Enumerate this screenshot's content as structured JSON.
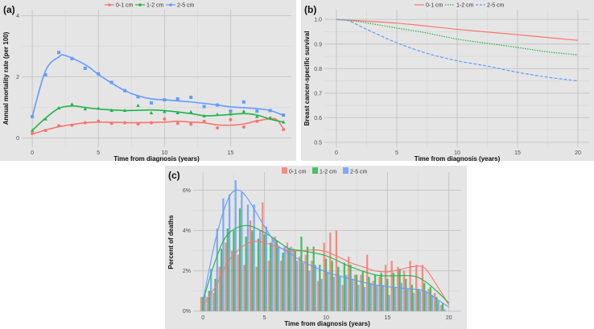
{
  "colors": {
    "c01": "#f8766d",
    "c12": "#1fb547",
    "c25": "#619cff",
    "bg": "#e5e5e5",
    "grid": "#c4c4c4",
    "minor": "#d6d6d6"
  },
  "chart_data": [
    {
      "id": "a",
      "panel_label": "(a)",
      "type": "scatter",
      "xlabel": "Time from diagnosis (years)",
      "ylabel": "Annual mortality rate (per 100)",
      "xlim": [
        -0.8,
        19.6
      ],
      "ylim": [
        -0.3,
        4.2
      ],
      "xticks": [
        0,
        5,
        10,
        15
      ],
      "yticks": [
        0,
        2,
        4
      ],
      "grid": true,
      "legend": "top",
      "x": [
        0,
        1,
        2,
        3,
        4,
        5,
        6,
        7,
        8,
        9,
        10,
        11,
        12,
        13,
        14,
        15,
        16,
        17,
        18,
        19
      ],
      "series": [
        {
          "name": "0-1 cm",
          "color": "#f8766d",
          "marker": "circle",
          "values": [
            0.15,
            0.25,
            0.4,
            0.42,
            0.5,
            0.55,
            0.48,
            0.5,
            0.46,
            0.5,
            0.62,
            0.48,
            0.45,
            0.55,
            0.33,
            0.6,
            0.36,
            0.55,
            0.65,
            0.28
          ],
          "smooth": [
            [
              0,
              0.13
            ],
            [
              1,
              0.26
            ],
            [
              2,
              0.37
            ],
            [
              3,
              0.44
            ],
            [
              4,
              0.5
            ],
            [
              5,
              0.52
            ],
            [
              6.5,
              0.51
            ],
            [
              8,
              0.5
            ],
            [
              10,
              0.52
            ],
            [
              11,
              0.55
            ],
            [
              12,
              0.52
            ],
            [
              13,
              0.5
            ],
            [
              14,
              0.43
            ],
            [
              15,
              0.42
            ],
            [
              16,
              0.46
            ],
            [
              17,
              0.56
            ],
            [
              18,
              0.63
            ],
            [
              18.5,
              0.6
            ],
            [
              19,
              0.3
            ]
          ]
        },
        {
          "name": "1-2 cm",
          "color": "#1fb547",
          "marker": "triangle",
          "values": [
            0.25,
            0.62,
            0.98,
            1.1,
            0.95,
            0.97,
            0.9,
            0.9,
            1.06,
            0.82,
            0.86,
            0.82,
            0.85,
            0.72,
            0.77,
            0.78,
            0.87,
            0.7,
            0.65,
            0.52
          ],
          "smooth": [
            [
              0,
              0.25
            ],
            [
              1,
              0.65
            ],
            [
              2,
              0.97
            ],
            [
              3,
              1.05
            ],
            [
              4,
              1.0
            ],
            [
              5,
              0.95
            ],
            [
              7,
              0.9
            ],
            [
              9,
              0.92
            ],
            [
              10,
              0.9
            ],
            [
              12,
              0.8
            ],
            [
              13,
              0.73
            ],
            [
              14,
              0.74
            ],
            [
              16,
              0.8
            ],
            [
              17,
              0.75
            ],
            [
              18,
              0.62
            ],
            [
              19,
              0.52
            ]
          ]
        },
        {
          "name": "2-5 cm",
          "color": "#619cff",
          "marker": "square",
          "values": [
            0.7,
            2.07,
            2.8,
            2.6,
            2.28,
            2.1,
            1.82,
            1.55,
            1.35,
            1.15,
            1.25,
            1.28,
            1.33,
            1.03,
            1.08,
            0.88,
            1.18,
            0.88,
            0.9,
            0.75
          ],
          "smooth": [
            [
              0,
              0.7
            ],
            [
              1,
              2.2
            ],
            [
              2,
              2.65
            ],
            [
              2.5,
              2.7
            ],
            [
              4,
              2.4
            ],
            [
              5,
              2.08
            ],
            [
              6,
              1.8
            ],
            [
              7,
              1.55
            ],
            [
              8,
              1.38
            ],
            [
              9,
              1.28
            ],
            [
              10,
              1.25
            ],
            [
              12,
              1.18
            ],
            [
              14,
              1.08
            ],
            [
              15,
              1.02
            ],
            [
              17,
              0.96
            ],
            [
              18,
              0.9
            ],
            [
              19,
              0.74
            ]
          ]
        }
      ]
    },
    {
      "id": "b",
      "panel_label": "(b)",
      "type": "line",
      "xlabel": "Time from diagnosis (years)",
      "ylabel": "Breast cancer-specific survival",
      "xlim": [
        -1,
        21
      ],
      "ylim": [
        0.48,
        1.04
      ],
      "xticks": [
        0,
        5,
        10,
        15,
        20
      ],
      "yticks": [
        0.5,
        0.6,
        0.7,
        0.8,
        0.9,
        1.0
      ],
      "ytick_labels": [
        "0.5",
        "0.6",
        "0.7",
        "0.8",
        "0.9",
        "1.0"
      ],
      "grid": true,
      "legend": "top",
      "series": [
        {
          "name": "0-1 cm",
          "color": "#f8766d",
          "dash": "solid",
          "points": [
            [
              0,
              1
            ],
            [
              5,
              0.985
            ],
            [
              10,
              0.96
            ],
            [
              15,
              0.938
            ],
            [
              20,
              0.915
            ]
          ]
        },
        {
          "name": "1-2 cm",
          "color": "#1fb547",
          "dash": "dotted",
          "points": [
            [
              0,
              1
            ],
            [
              2,
              0.99
            ],
            [
              5,
              0.965
            ],
            [
              7.5,
              0.945
            ],
            [
              10,
              0.92
            ],
            [
              12.5,
              0.903
            ],
            [
              15,
              0.886
            ],
            [
              17.5,
              0.868
            ],
            [
              20,
              0.856
            ]
          ]
        },
        {
          "name": "2-5 cm",
          "color": "#619cff",
          "dash": "dashed",
          "points": [
            [
              0,
              1
            ],
            [
              1,
              0.995
            ],
            [
              2.5,
              0.96
            ],
            [
              5,
              0.905
            ],
            [
              7.5,
              0.862
            ],
            [
              10,
              0.832
            ],
            [
              12.5,
              0.81
            ],
            [
              15,
              0.785
            ],
            [
              17.5,
              0.765
            ],
            [
              20,
              0.75
            ]
          ]
        }
      ]
    },
    {
      "id": "c",
      "panel_label": "(c)",
      "type": "bar",
      "xlabel": "Time from diagnosis (years)",
      "ylabel": "Percent of deaths",
      "xlim": [
        -0.8,
        21
      ],
      "ylim": [
        -0.05,
        6.9
      ],
      "xticks": [
        0,
        5,
        10,
        15,
        20
      ],
      "yticks": [
        0,
        2,
        4,
        6
      ],
      "ytick_labels": [
        "0%",
        "2%",
        "4%",
        "6%"
      ],
      "grid": true,
      "legend": "top",
      "bin_width": 0.5,
      "series": [
        {
          "name": "0-1 cm",
          "color": "#f8766d",
          "values": [
            0.7,
            0.7,
            0.9,
            2.2,
            3.4,
            3.0,
            2.8,
            2.3,
            4.5,
            2.2,
            5.4,
            2.5,
            3.7,
            2.5,
            3.4,
            3.1,
            2.7,
            2.8,
            2.5,
            1.5,
            3.4,
            3.9,
            4.0,
            1.3,
            2.7,
            1.8,
            1.8,
            2.8,
            1.5,
            1.7,
            2.3,
            2.5,
            2.2,
            2.0,
            2.5,
            2.3,
            2.3,
            1.1,
            0.9,
            0.3
          ],
          "smooth": [
            [
              0,
              0.3
            ],
            [
              1,
              1.2
            ],
            [
              2,
              2.4
            ],
            [
              3,
              3.1
            ],
            [
              4,
              3.45
            ],
            [
              5,
              3.4
            ],
            [
              6,
              3.2
            ],
            [
              7,
              3.0
            ],
            [
              8,
              3.0
            ],
            [
              9,
              3.05
            ],
            [
              10,
              2.95
            ],
            [
              11,
              2.7
            ],
            [
              12,
              2.4
            ],
            [
              13,
              2.2
            ],
            [
              14,
              2.0
            ],
            [
              15,
              1.95
            ],
            [
              16,
              2.05
            ],
            [
              17,
              2.2
            ],
            [
              18,
              2.15
            ],
            [
              19,
              1.3
            ],
            [
              20,
              0.3
            ]
          ]
        },
        {
          "name": "1-2 cm",
          "color": "#1fb547",
          "values": [
            0.7,
            1.0,
            1.6,
            3.1,
            4.1,
            4.0,
            5.1,
            3.7,
            4.0,
            3.6,
            3.8,
            3.4,
            3.5,
            2.9,
            3.1,
            3.0,
            3.7,
            3.2,
            3.2,
            2.3,
            2.6,
            2.5,
            2.2,
            2.4,
            2.3,
            1.8,
            2.0,
            1.7,
            1.8,
            1.9,
            1.6,
            1.9,
            2.1,
            1.6,
            1.3,
            1.1,
            1.4,
            1.2,
            0.7,
            0.4
          ],
          "smooth": [
            [
              0,
              0.5
            ],
            [
              1,
              2.5
            ],
            [
              2,
              3.8
            ],
            [
              3.5,
              4.25
            ],
            [
              5,
              3.9
            ],
            [
              6,
              3.5
            ],
            [
              7,
              3.1
            ],
            [
              8,
              3.0
            ],
            [
              10,
              2.75
            ],
            [
              12,
              2.2
            ],
            [
              14,
              1.8
            ],
            [
              15,
              1.75
            ],
            [
              17,
              1.75
            ],
            [
              18,
              1.5
            ],
            [
              19,
              1.0
            ],
            [
              20,
              0.4
            ]
          ]
        },
        {
          "name": "2-5 cm",
          "color": "#619cff",
          "values": [
            0.8,
            2.1,
            4.1,
            5.6,
            5.8,
            6.5,
            5.9,
            5.3,
            5.3,
            4.0,
            4.2,
            3.6,
            3.2,
            3.2,
            3.2,
            2.5,
            2.4,
            2.0,
            2.3,
            1.6,
            1.9,
            1.7,
            1.7,
            1.8,
            1.6,
            1.3,
            1.2,
            1.4,
            1.3,
            1.3,
            0.8,
            1.2,
            1.4,
            1.1,
            0.9,
            1.0,
            1.0,
            0.8,
            0.5,
            0.1
          ],
          "smooth": [
            [
              0,
              0.5
            ],
            [
              1,
              3.5
            ],
            [
              2,
              5.5
            ],
            [
              2.7,
              6.0
            ],
            [
              3.5,
              5.7
            ],
            [
              5,
              4.2
            ],
            [
              6,
              3.3
            ],
            [
              7,
              2.9
            ],
            [
              8,
              2.5
            ],
            [
              10,
              1.95
            ],
            [
              12,
              1.6
            ],
            [
              14,
              1.3
            ],
            [
              16,
              1.15
            ],
            [
              17,
              1.1
            ],
            [
              18,
              1.0
            ],
            [
              19,
              0.6
            ],
            [
              20,
              0.2
            ]
          ]
        }
      ]
    }
  ]
}
